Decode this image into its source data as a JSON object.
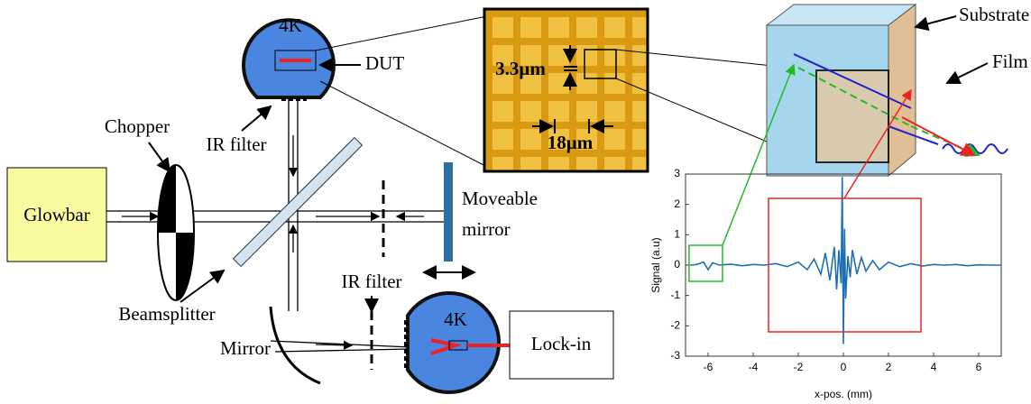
{
  "labels": {
    "cryostat_top": "4K",
    "dut": "DUT",
    "ir_filter_top": "IR filter",
    "chopper": "Chopper",
    "glowbar": "Glowbar",
    "moveable_mirror": [
      "Moveable",
      "mirror"
    ],
    "ir_filter_bottom": "IR filter",
    "cryostat_bottom": "4K",
    "lock_in": "Lock-in",
    "beamsplitter": "Beamsplitter",
    "mirror": "Mirror",
    "gap_width": "3.3μm",
    "period": "18μm",
    "substrate": "Substrate",
    "film": "Film"
  },
  "chart_data": {
    "type": "line",
    "xlabel": "x-pos. (mm)",
    "ylabel": "Signal (a.u)",
    "color": "#1f6fb5",
    "x": [
      -6.8,
      -6.5,
      -6.2,
      -6.0,
      -5.8,
      -5.5,
      -5.0,
      -4.5,
      -4.0,
      -3.5,
      -3.0,
      -2.5,
      -2.0,
      -1.6,
      -1.3,
      -1.0,
      -0.8,
      -0.6,
      -0.4,
      -0.3,
      -0.2,
      -0.1,
      -0.05,
      0,
      0.05,
      0.1,
      0.2,
      0.3,
      0.4,
      0.6,
      0.8,
      1.0,
      1.3,
      1.6,
      2.0,
      2.5,
      3.0,
      3.5,
      4.0,
      4.5,
      5.0,
      5.5,
      6.0,
      6.5,
      7.0
    ],
    "values": [
      0,
      0.02,
      0.1,
      -0.15,
      0.08,
      0,
      0.03,
      -0.02,
      0.02,
      0,
      0.05,
      -0.05,
      0.1,
      -0.15,
      0.2,
      -0.3,
      0.4,
      -0.5,
      0.6,
      -0.8,
      0.5,
      -0.6,
      2.9,
      -2.6,
      1.2,
      -1.1,
      0.3,
      -0.4,
      0.5,
      -0.3,
      0.25,
      -0.2,
      0.15,
      -0.15,
      0.1,
      -0.05,
      0.05,
      -0.03,
      0.02,
      0,
      0.02,
      -0.02,
      0.01,
      0,
      0
    ],
    "xlim": [
      -7,
      7
    ],
    "ylim": [
      -3,
      3
    ],
    "xticks": [
      -6,
      -4,
      -2,
      0,
      2,
      4,
      6
    ],
    "yticks": [
      -3,
      -2,
      -1,
      0,
      1,
      2,
      3
    ]
  }
}
